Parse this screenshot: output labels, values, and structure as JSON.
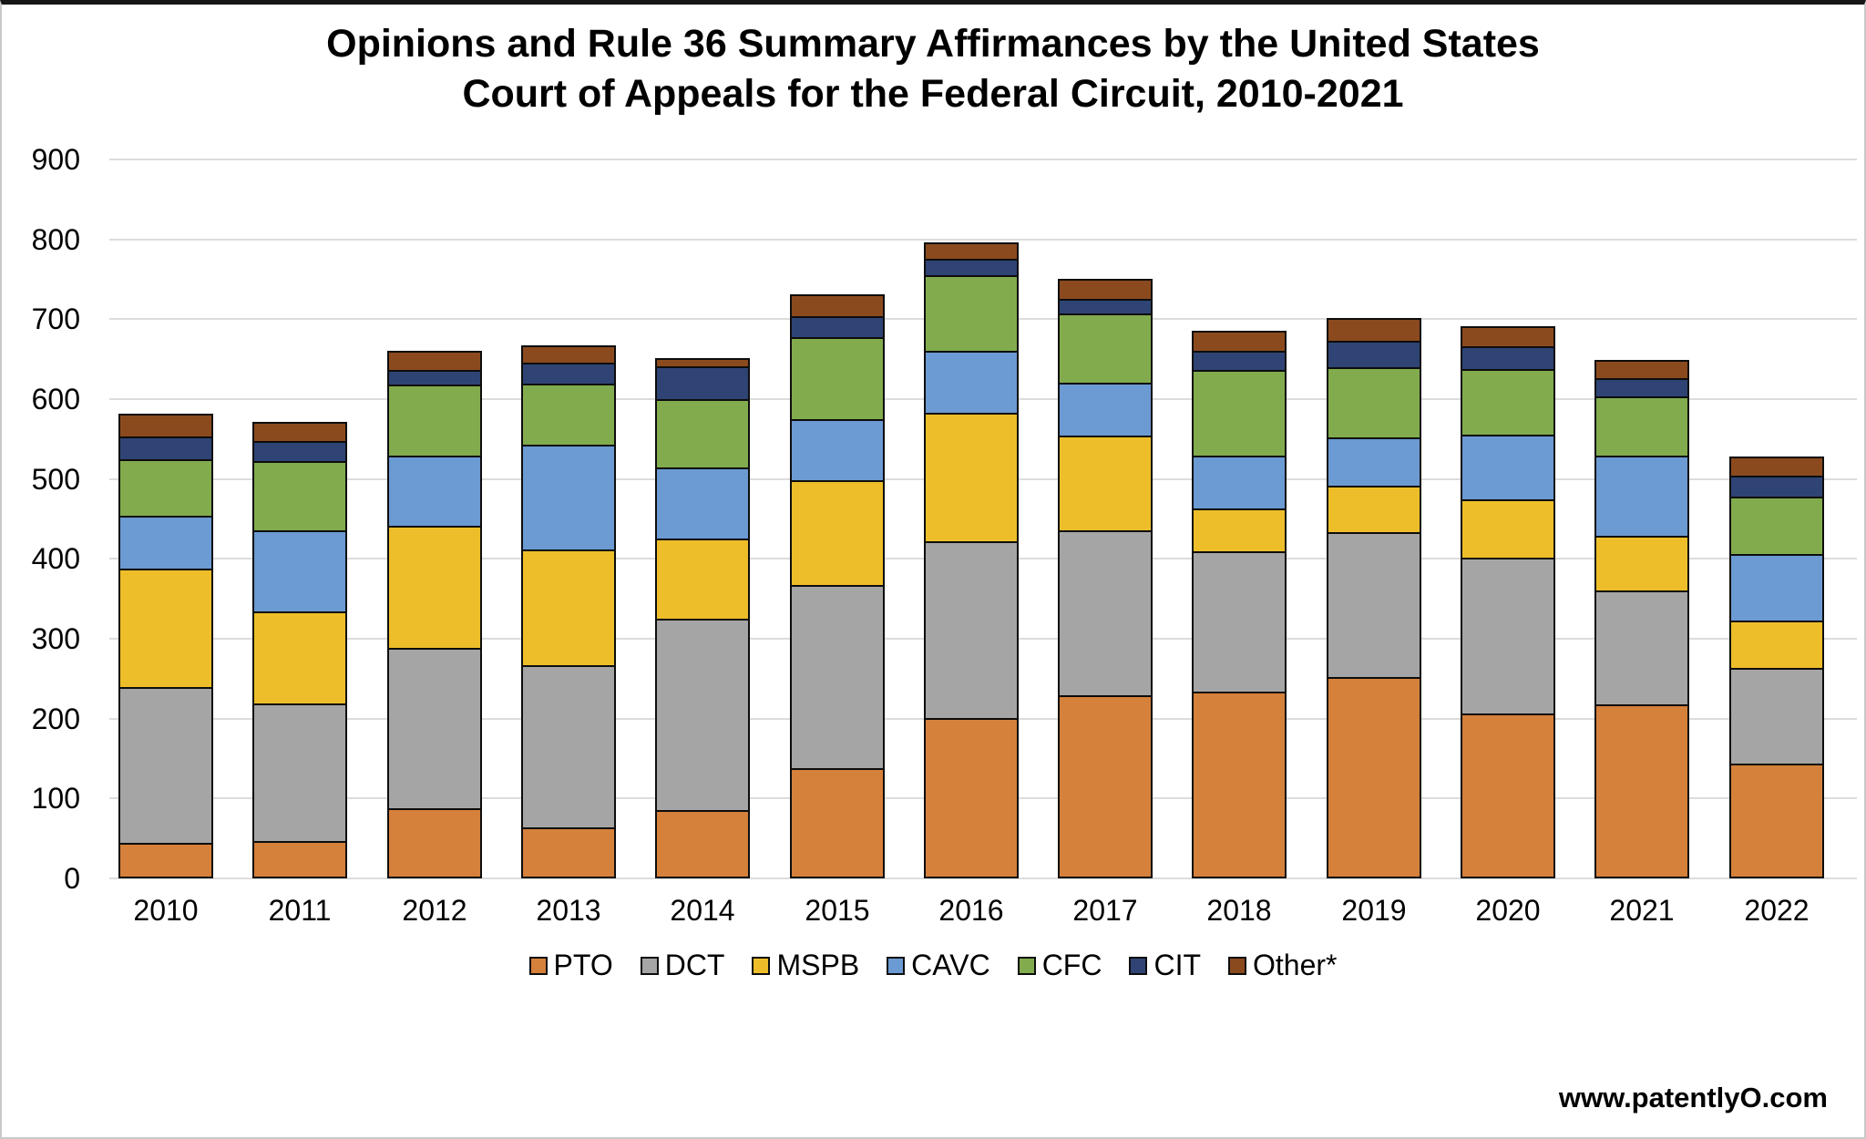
{
  "page": {
    "background": "#ffffff",
    "frame_top_color": "#161616",
    "frame_color": "#c9c9c9"
  },
  "chart_data": {
    "type": "bar",
    "stacked": true,
    "title": "Opinions and Rule 36 Summary Affirmances by the United States Court of Appeals for the Federal Circuit, 2010-2021",
    "title_lines": [
      "Opinions and Rule 36 Summary Affirmances by the United States",
      "Court of Appeals for the Federal Circuit, 2010-2021"
    ],
    "categories": [
      "2010",
      "2011",
      "2012",
      "2013",
      "2014",
      "2015",
      "2016",
      "2017",
      "2018",
      "2019",
      "2020",
      "2021",
      "2022"
    ],
    "series": [
      {
        "name": "PTO",
        "color": "#d5803b",
        "values": [
          44,
          47,
          88,
          64,
          85,
          138,
          201,
          229,
          234,
          252,
          206,
          218,
          144
        ]
      },
      {
        "name": "DCT",
        "color": "#a5a5a5",
        "values": [
          196,
          172,
          201,
          203,
          240,
          229,
          221,
          207,
          175,
          181,
          196,
          142,
          119
        ]
      },
      {
        "name": "MSPB",
        "color": "#edbe2a",
        "values": [
          148,
          115,
          153,
          145,
          100,
          131,
          161,
          118,
          54,
          59,
          73,
          69,
          60
        ]
      },
      {
        "name": "CAVC",
        "color": "#6c9ad2",
        "values": [
          66,
          102,
          87,
          131,
          90,
          77,
          78,
          66,
          66,
          60,
          80,
          100,
          83
        ]
      },
      {
        "name": "CFC",
        "color": "#82ab4e",
        "values": [
          71,
          87,
          89,
          76,
          85,
          102,
          94,
          87,
          107,
          88,
          83,
          74,
          72
        ]
      },
      {
        "name": "CIT",
        "color": "#2f4474",
        "values": [
          28,
          25,
          18,
          27,
          41,
          27,
          21,
          18,
          24,
          33,
          28,
          23,
          26
        ]
      },
      {
        "name": "Other*",
        "color": "#8b4a1e",
        "values": [
          29,
          23,
          24,
          21,
          10,
          27,
          20,
          25,
          25,
          29,
          25,
          23,
          24
        ]
      }
    ],
    "totals": [
      582,
      571,
      660,
      667,
      651,
      731,
      796,
      750,
      685,
      702,
      691,
      649,
      528
    ],
    "y_axis": {
      "min": 0,
      "max": 900,
      "step": 100,
      "tick_labels": [
        "0",
        "100",
        "200",
        "300",
        "400",
        "500",
        "600",
        "700",
        "800",
        "900"
      ]
    },
    "legend": {
      "position": "bottom",
      "labels": [
        "PTO",
        "DCT",
        "MSPB",
        "CAVC",
        "CFC",
        "CIT",
        "Other*"
      ]
    },
    "grid": true,
    "gridline_color": "#dcdcdc",
    "bar_border_color": "#0d0d0d"
  },
  "footer": {
    "watermark": "www.patentlyO.com"
  }
}
